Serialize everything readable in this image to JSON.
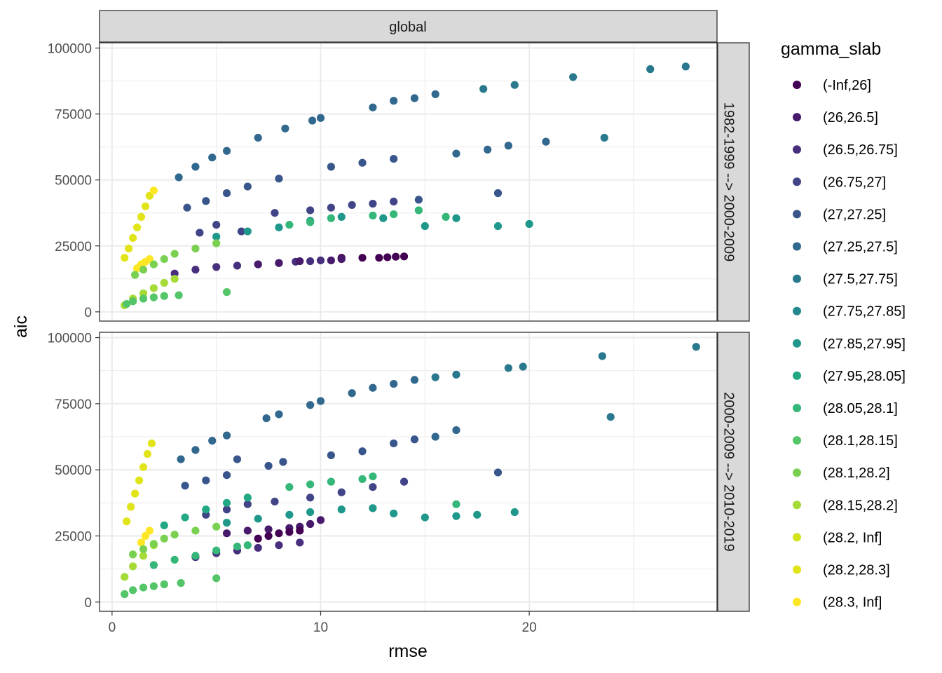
{
  "chart_data": {
    "type": "scatter",
    "facet_top_label": "global",
    "xlabel": "rmse",
    "ylabel": "aic",
    "xlim": [
      -0.6,
      29.0
    ],
    "ylim": [
      -3500,
      102000
    ],
    "x_ticks": [
      0,
      10,
      20
    ],
    "x_tick_labels": [
      "0",
      "10",
      "20"
    ],
    "y_ticks": [
      0,
      25000,
      50000,
      75000,
      100000
    ],
    "y_tick_labels": [
      "0",
      "25000",
      "50000",
      "75000",
      "100000"
    ],
    "legend": {
      "title": "gamma_slab",
      "position": "right",
      "entries": [
        {
          "label": "(-Inf,26]",
          "color": "#440154"
        },
        {
          "label": "(26,26.5]",
          "color": "#481A6C"
        },
        {
          "label": "(26.5,26.75]",
          "color": "#472F7D"
        },
        {
          "label": "(26.75,27]",
          "color": "#414487"
        },
        {
          "label": "(27,27.25]",
          "color": "#39568C"
        },
        {
          "label": "(27.25,27.5]",
          "color": "#31688E"
        },
        {
          "label": "(27.5,27.75]",
          "color": "#2A788E"
        },
        {
          "label": "(27.75,27.85]",
          "color": "#23888E"
        },
        {
          "label": "(27.85,27.95]",
          "color": "#1F988B"
        },
        {
          "label": "(27.95,28.05]",
          "color": "#22A884"
        },
        {
          "label": "(28.05,28.1]",
          "color": "#35B779"
        },
        {
          "label": "(28.1,28.15]",
          "color": "#54C568"
        },
        {
          "label": "(28.1,28.2]",
          "color": "#7AD151"
        },
        {
          "label": "(28.15,28.2]",
          "color": "#A5DB36"
        },
        {
          "label": "(28.2, Inf]",
          "color": "#D2E21B"
        },
        {
          "label": "(28.2,28.3]",
          "color": "#E1E418"
        },
        {
          "label": "(28.3, Inf]",
          "color": "#FDE725"
        }
      ]
    },
    "panels": [
      {
        "label": "1982-1999 --> 2000-2009",
        "series": [
          {
            "group": "(27.25,27.5]",
            "x": [
              3.2,
              4.0,
              4.8,
              5.5,
              7.0,
              8.3,
              9.6,
              10.0,
              12.5,
              13.5,
              14.5,
              15.5,
              16.5,
              18.0,
              19.0,
              20.8
            ],
            "y": [
              51000,
              55000,
              58500,
              61000,
              66000,
              69500,
              72500,
              73500,
              77500,
              80000,
              81000,
              82500,
              60000,
              61500,
              63000,
              64500
            ]
          },
          {
            "group": "(27.5,27.75]",
            "x": [
              17.8,
              19.3,
              22.1,
              25.8,
              27.5,
              23.6
            ],
            "y": [
              84500,
              86000,
              89000,
              92000,
              93000,
              66000
            ]
          },
          {
            "group": "(27,27.25]",
            "x": [
              3.6,
              4.5,
              5.5,
              6.5,
              8.0,
              10.5,
              12.0,
              13.5,
              14.7,
              18.5
            ],
            "y": [
              39500,
              42000,
              45000,
              47500,
              50500,
              55000,
              56500,
              58000,
              42500,
              45000
            ]
          },
          {
            "group": "(26.75,27]",
            "x": [
              4.2,
              5.0,
              6.2,
              7.8,
              9.5,
              10.5,
              11.5,
              12.5,
              13.5
            ],
            "y": [
              30000,
              33000,
              30500,
              37500,
              38500,
              39500,
              40500,
              41000,
              41800
            ]
          },
          {
            "group": "(27.85,27.95]",
            "x": [
              5.0,
              6.5,
              8.0,
              9.5,
              11.0,
              13.0,
              15.0,
              16.5,
              18.5,
              20.0
            ],
            "y": [
              28500,
              30500,
              32000,
              34500,
              36000,
              35500,
              32500,
              35500,
              32500,
              33300
            ]
          },
          {
            "group": "(28.05,28.1]",
            "x": [
              8.5,
              9.5,
              10.5,
              12.5,
              13.5,
              14.7,
              16.0
            ],
            "y": [
              33000,
              34000,
              35500,
              36500,
              37000,
              38500,
              36000
            ]
          },
          {
            "group": "(26.5,26.75]",
            "x": [
              3.0,
              4.0,
              5.0,
              6.0,
              7.0,
              8.0,
              8.8,
              9.5,
              10.0
            ],
            "y": [
              14500,
              16000,
              17000,
              17500,
              18000,
              18500,
              19000,
              19200,
              19500
            ]
          },
          {
            "group": "(-Inf,26]",
            "x": [
              11.0,
              12.0,
              12.8,
              13.2,
              13.6,
              14.0
            ],
            "y": [
              20500,
              20500,
              20500,
              20700,
              20900,
              21000
            ]
          },
          {
            "group": "(26,26.5]",
            "x": [
              7.0,
              8.0,
              9.0,
              10.5,
              11.0
            ],
            "y": [
              18000,
              18500,
              19200,
              19500,
              20000
            ]
          },
          {
            "group": "(28.2,28.3]",
            "x": [
              0.6,
              0.8,
              1.0,
              1.2,
              1.4,
              1.6,
              1.8
            ],
            "y": [
              20500,
              24000,
              28000,
              32000,
              36000,
              40000,
              44000
            ]
          },
          {
            "group": "(28.3, Inf]",
            "x": [
              1.2,
              1.4,
              1.6,
              1.8,
              2.0
            ],
            "y": [
              16500,
              18000,
              19000,
              20000,
              46000
            ]
          },
          {
            "group": "(28.15,28.2]",
            "x": [
              0.6,
              1.0,
              1.5,
              2.0,
              2.5,
              3.0
            ],
            "y": [
              2500,
              5000,
              7000,
              9000,
              11000,
              12500
            ]
          },
          {
            "group": "(28.1,28.15]",
            "x": [
              0.7,
              1.0,
              1.5,
              2.0,
              2.5,
              3.2,
              5.5
            ],
            "y": [
              3000,
              4000,
              5000,
              5500,
              6000,
              6300,
              7500
            ]
          },
          {
            "group": "(28.1,28.2]",
            "x": [
              1.1,
              1.5,
              2.0,
              2.5,
              3.0,
              4.0,
              5.0
            ],
            "y": [
              14000,
              16000,
              18000,
              20000,
              22000,
              24000,
              26000
            ]
          }
        ]
      },
      {
        "label": "2000-2009 --> 2010-2019",
        "series": [
          {
            "group": "(27.25,27.5]",
            "x": [
              3.3,
              4.0,
              4.8,
              5.5,
              7.4,
              8.0,
              9.5,
              10.0,
              11.5,
              12.5,
              13.5,
              14.5,
              15.5,
              16.5
            ],
            "y": [
              54000,
              57500,
              61000,
              63000,
              69500,
              71000,
              74500,
              76000,
              79000,
              81000,
              82500,
              84000,
              62500,
              65000
            ]
          },
          {
            "group": "(27.5,27.75]",
            "x": [
              15.5,
              16.5,
              19.0,
              19.7,
              23.5,
              28.0,
              23.9
            ],
            "y": [
              85000,
              86000,
              88500,
              89000,
              93000,
              96500,
              70000
            ]
          },
          {
            "group": "(27,27.25]",
            "x": [
              3.5,
              4.5,
              5.5,
              6.0,
              7.5,
              8.2,
              10.5,
              12.0,
              13.5,
              14.5,
              18.5
            ],
            "y": [
              44000,
              46000,
              48000,
              54000,
              51500,
              53000,
              55500,
              57000,
              60000,
              61500,
              49000
            ]
          },
          {
            "group": "(26.75,27]",
            "x": [
              4.5,
              5.5,
              6.5,
              7.8,
              9.5,
              11.0,
              12.5,
              14.0
            ],
            "y": [
              33000,
              35000,
              37000,
              38000,
              39500,
              41500,
              43500,
              45500
            ]
          },
          {
            "group": "(27.85,27.95]",
            "x": [
              5.5,
              7.0,
              8.5,
              9.5,
              11.0,
              12.5,
              13.5,
              15.0,
              16.5,
              17.5,
              19.3
            ],
            "y": [
              30000,
              31500,
              33000,
              34000,
              35000,
              35500,
              33500,
              32000,
              32500,
              33000,
              34000
            ]
          },
          {
            "group": "(28.05,28.1]",
            "x": [
              8.5,
              9.5,
              10.5,
              12.0,
              12.5,
              16.5
            ],
            "y": [
              43500,
              44500,
              45500,
              46500,
              47500,
              37000
            ]
          },
          {
            "group": "(26.5,26.75]",
            "x": [
              4.0,
              5.0,
              6.0,
              7.0,
              8.0,
              9.0
            ],
            "y": [
              17000,
              18500,
              19500,
              20500,
              21500,
              22500
            ]
          },
          {
            "group": "(26,26.5]",
            "x": [
              5.5,
              6.5,
              7.5,
              8.5,
              9.0,
              9.5,
              10.0
            ],
            "y": [
              26000,
              27000,
              27500,
              28000,
              28500,
              29500,
              31000
            ]
          },
          {
            "group": "(-Inf,26]",
            "x": [
              7.0,
              7.5,
              8.0,
              8.5,
              9.0
            ],
            "y": [
              24000,
              25000,
              26000,
              26500,
              27000
            ]
          },
          {
            "group": "(28.2,28.3]",
            "x": [
              0.7,
              0.9,
              1.1,
              1.3,
              1.5,
              1.7,
              1.9
            ],
            "y": [
              30500,
              36000,
              41000,
              46000,
              51000,
              56000,
              60000
            ]
          },
          {
            "group": "(28.3, Inf]",
            "x": [
              1.4,
              1.6,
              1.8
            ],
            "y": [
              22500,
              25000,
              27000
            ]
          },
          {
            "group": "(28.15,28.2]",
            "x": [
              0.6,
              1.0,
              1.5,
              2.0
            ],
            "y": [
              9500,
              13500,
              17500,
              21500
            ]
          },
          {
            "group": "(28.1,28.15]",
            "x": [
              0.6,
              1.0,
              1.5,
              2.0,
              2.5,
              3.3,
              5.0
            ],
            "y": [
              3000,
              4500,
              5500,
              6000,
              6700,
              7200,
              9000
            ]
          },
          {
            "group": "(28.1,28.2]",
            "x": [
              1.0,
              1.5,
              2.0,
              2.5,
              3.0,
              4.0,
              5.0
            ],
            "y": [
              18000,
              20000,
              22000,
              24000,
              25500,
              27000,
              28500
            ]
          },
          {
            "group": "(27.95,28.05]",
            "x": [
              2.5,
              3.5,
              4.5,
              5.5,
              6.5
            ],
            "y": [
              29000,
              32000,
              35000,
              37500,
              39500
            ]
          },
          {
            "group": "(28.05,28.1]",
            "x": [
              2.0,
              3.0,
              4.0,
              5.0,
              6.0,
              6.5
            ],
            "y": [
              14000,
              16000,
              17500,
              19500,
              21000,
              21500
            ]
          }
        ]
      }
    ]
  }
}
